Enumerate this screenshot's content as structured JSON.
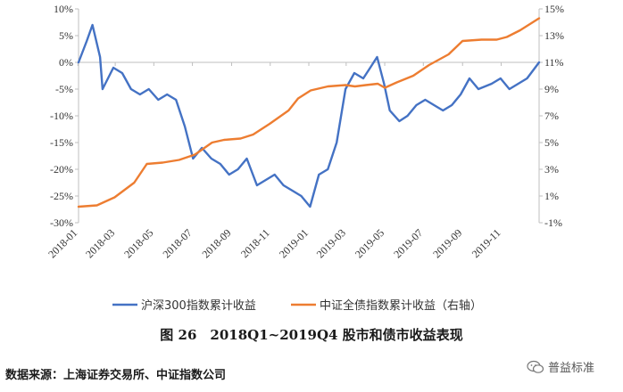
{
  "chart_data": {
    "type": "line",
    "title": "图 26　2018Q1~2019Q4 股市和债市收益表现",
    "x_ticks": [
      "2018-01",
      "2018-03",
      "2018-05",
      "2018-07",
      "2018-09",
      "2018-11",
      "2019-01",
      "2019-03",
      "2019-05",
      "2019-07",
      "2019-09",
      "2019-11"
    ],
    "y_left": {
      "ylim": [
        -30,
        10
      ],
      "ticks": [
        "10%",
        "5%",
        "0%",
        "-5%",
        "-10%",
        "-15%",
        "-20%",
        "-25%",
        "-30%"
      ]
    },
    "y_right": {
      "ylim": [
        -1,
        15
      ],
      "ticks": [
        "15%",
        "13%",
        "11%",
        "9%",
        "7%",
        "5%",
        "3%",
        "1%",
        "-1%"
      ]
    },
    "grid": false,
    "legend_position": "bottom",
    "series": [
      {
        "name": "沪深300指数累计收益",
        "axis": "left",
        "color": "#4472C4",
        "x": [
          "2018-01-02",
          "2018-01-15",
          "2018-01-24",
          "2018-02-05",
          "2018-02-09",
          "2018-02-26",
          "2018-03-12",
          "2018-03-26",
          "2018-04-09",
          "2018-04-23",
          "2018-05-08",
          "2018-05-22",
          "2018-06-05",
          "2018-06-19",
          "2018-07-02",
          "2018-07-16",
          "2018-07-31",
          "2018-08-14",
          "2018-08-28",
          "2018-09-11",
          "2018-09-25",
          "2018-10-11",
          "2018-10-25",
          "2018-11-08",
          "2018-11-22",
          "2018-12-06",
          "2018-12-20",
          "2019-01-03",
          "2019-01-17",
          "2019-01-31",
          "2019-02-14",
          "2019-02-28",
          "2019-03-14",
          "2019-03-28",
          "2019-04-08",
          "2019-04-19",
          "2019-04-30",
          "2019-05-09",
          "2019-05-24",
          "2019-06-06",
          "2019-06-20",
          "2019-07-04",
          "2019-07-18",
          "2019-08-01",
          "2019-08-15",
          "2019-08-29",
          "2019-09-12",
          "2019-09-26",
          "2019-10-17",
          "2019-10-31",
          "2019-11-14",
          "2019-11-28",
          "2019-12-12",
          "2019-12-31"
        ],
        "y": [
          0,
          4,
          7,
          1,
          -5,
          -1,
          -2,
          -5,
          -6,
          -5,
          -7,
          -6,
          -7,
          -12,
          -18,
          -16,
          -18,
          -19,
          -21,
          -20,
          -18,
          -23,
          -22,
          -21,
          -23,
          -24,
          -25,
          -27,
          -21,
          -20,
          -15,
          -5,
          -2,
          -3,
          -1,
          1,
          -4,
          -9,
          -11,
          -10,
          -8,
          -7,
          -8,
          -9,
          -8,
          -6,
          -3,
          -5,
          -4,
          -3,
          -5,
          -4,
          -3,
          0
        ]
      },
      {
        "name": "中证全债指数累计收益（右轴）",
        "axis": "right",
        "color": "#ED7D31",
        "x": [
          "2018-01-02",
          "2018-01-31",
          "2018-02-28",
          "2018-03-31",
          "2018-04-20",
          "2018-05-15",
          "2018-06-10",
          "2018-07-05",
          "2018-08-01",
          "2018-08-20",
          "2018-09-15",
          "2018-10-05",
          "2018-10-31",
          "2018-11-30",
          "2018-12-15",
          "2019-01-04",
          "2019-01-31",
          "2019-02-28",
          "2019-03-15",
          "2019-04-01",
          "2019-04-20",
          "2019-05-01",
          "2019-05-20",
          "2019-06-15",
          "2019-07-10",
          "2019-08-10",
          "2019-09-01",
          "2019-10-01",
          "2019-10-25",
          "2019-11-10",
          "2019-12-01",
          "2019-12-31"
        ],
        "y": [
          0.2,
          0.3,
          0.9,
          2.0,
          3.4,
          3.5,
          3.7,
          4.1,
          5.0,
          5.2,
          5.3,
          5.6,
          6.4,
          7.4,
          8.3,
          8.9,
          9.2,
          9.3,
          9.2,
          9.3,
          9.4,
          9.1,
          9.5,
          10.0,
          10.8,
          11.6,
          12.6,
          12.7,
          12.7,
          12.9,
          13.4,
          14.3
        ]
      }
    ]
  },
  "caption": "图 26　2018Q1~2019Q4 股市和债市收益表现",
  "source": "数据来源：上海证券交易所、中证指数公司",
  "watermark": "普益标准"
}
